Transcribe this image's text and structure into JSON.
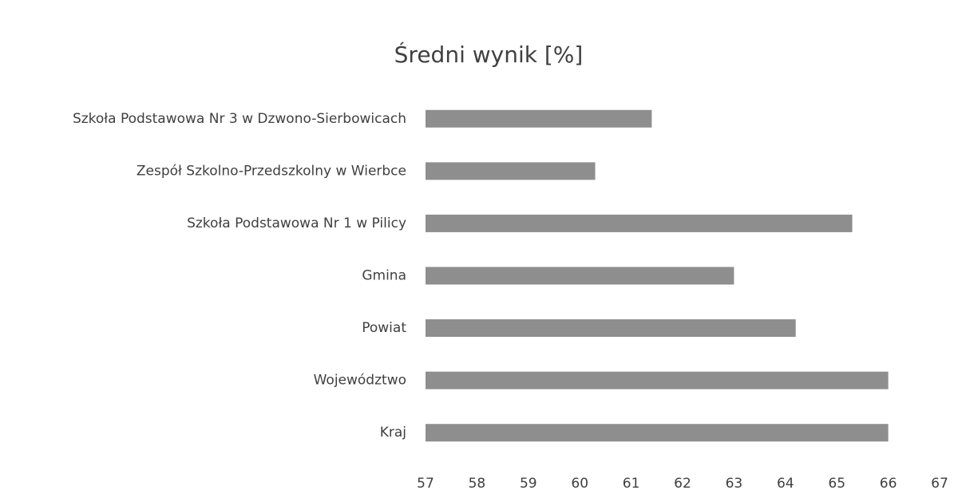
{
  "chart_data": {
    "type": "bar",
    "orientation": "horizontal",
    "title": "Średni wynik [%]",
    "categories": [
      "Szkoła Podstawowa Nr 3 w Dzwono-Sierbowicach",
      "Zespół Szkolno-Przedszkolny w Wierbce",
      "Szkoła Podstawowa Nr 1 w Pilicy",
      "Gmina",
      "Powiat",
      "Województwo",
      "Kraj"
    ],
    "values": [
      61.4,
      60.3,
      65.3,
      63.0,
      64.2,
      66.0,
      66.0
    ],
    "color": "#8e8e8e",
    "xlim": [
      57,
      67
    ],
    "xticks": [
      57,
      58,
      59,
      60,
      61,
      62,
      63,
      64,
      65,
      66,
      67
    ],
    "grid": false
  }
}
